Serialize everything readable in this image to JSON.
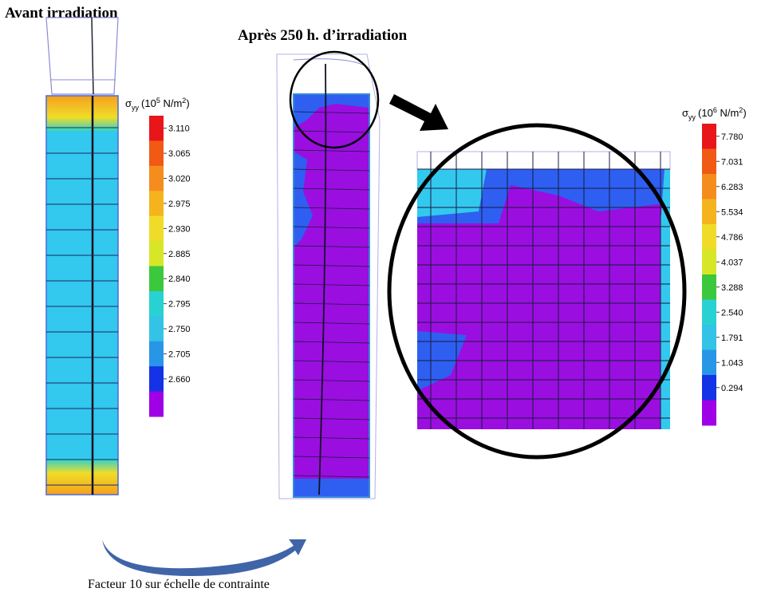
{
  "panels": {
    "before": {
      "title": "Avant irradiation"
    },
    "after": {
      "title": "Après 250 h. d’irradiation"
    }
  },
  "legends": [
    {
      "title": {
        "symbol": "σ",
        "sub": "yy",
        "pre": "(10",
        "exp": "5",
        "unit": " N/m",
        "unit_exp": "2",
        "close": ")"
      },
      "labels": [
        "3.110",
        "3.065",
        "3.020",
        "2.975",
        "2.930",
        "2.885",
        "2.840",
        "2.795",
        "2.750",
        "2.705",
        "2.660"
      ]
    },
    {
      "title": {
        "symbol": "σ",
        "sub": "yy",
        "pre": "(10",
        "exp": "6",
        "unit": " N/m",
        "unit_exp": "2",
        "close": ")"
      },
      "labels": [
        "7.780",
        "7.031",
        "6.283",
        "5.534",
        "4.786",
        "4.037",
        "3.288",
        "2.540",
        "1.791",
        "1.043",
        "0.294"
      ]
    }
  ],
  "caption": "Facteur 10 sur échelle de contrainte"
}
